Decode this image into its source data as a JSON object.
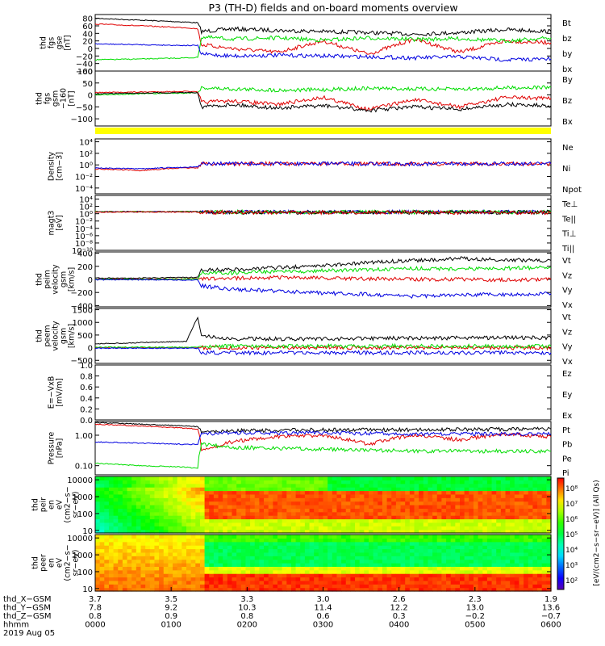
{
  "title": "P3 (TH-D) fields and on-board moments overview",
  "colors": {
    "black": "#000000",
    "red": "#e00000",
    "green": "#00dd00",
    "blue": "#0000e0",
    "yellow": "#ffff00"
  },
  "chart_data": [
    {
      "type": "line",
      "id": "fgs-dsl",
      "ylabel": [
        "thd",
        "fgs",
        "gse",
        "[nT]"
      ],
      "ylim": [
        -60,
        90
      ],
      "yticks": [
        "80",
        "60",
        "40",
        "20",
        "0",
        "−20",
        "−40",
        "−60"
      ],
      "ytick_values": [
        80,
        60,
        40,
        20,
        0,
        -20,
        -40,
        -60
      ],
      "legend": [
        {
          "label": "Bt",
          "color": "black"
        },
        {
          "label": "bz",
          "color": "red"
        },
        {
          "label": "by",
          "color": "green"
        },
        {
          "label": "bx",
          "color": "blue"
        }
      ],
      "series": [
        {
          "name": "Bt",
          "color": "black",
          "x": [
            0,
            60,
            120,
            135,
            140,
            180,
            240,
            300,
            360,
            420,
            480,
            540,
            600
          ],
          "y": [
            80,
            75,
            70,
            68,
            45,
            52,
            48,
            45,
            42,
            38,
            42,
            50,
            45
          ]
        },
        {
          "name": "bz",
          "color": "red",
          "x": [
            0,
            60,
            120,
            135,
            140,
            180,
            240,
            300,
            360,
            420,
            480,
            540,
            600
          ],
          "y": [
            65,
            60,
            55,
            52,
            10,
            0,
            -10,
            20,
            -15,
            25,
            -10,
            20,
            15
          ]
        },
        {
          "name": "by",
          "color": "green",
          "x": [
            0,
            60,
            120,
            135,
            140,
            180,
            240,
            300,
            360,
            420,
            480,
            540,
            600
          ],
          "y": [
            -30,
            -28,
            -25,
            -24,
            30,
            25,
            28,
            22,
            28,
            24,
            26,
            20,
            28
          ]
        },
        {
          "name": "bx",
          "color": "blue",
          "x": [
            0,
            60,
            120,
            135,
            140,
            180,
            240,
            300,
            360,
            420,
            480,
            540,
            600
          ],
          "y": [
            12,
            10,
            8,
            8,
            -15,
            -20,
            -18,
            -20,
            -22,
            -25,
            -22,
            -30,
            -28
          ]
        }
      ]
    },
    {
      "type": "line",
      "id": "fgs-gsm",
      "ylabel": [
        "thd",
        "fgs",
        "gsm",
        "−160",
        "[nT]"
      ],
      "ylim": [
        -130,
        100
      ],
      "yticks": [
        "100",
        "50",
        "0",
        "−50",
        "−100"
      ],
      "ytick_values": [
        100,
        50,
        0,
        -50,
        -100
      ],
      "legend": [
        {
          "label": "By",
          "color": "green"
        },
        {
          "label": "Bz",
          "color": "red"
        },
        {
          "label": "Bx",
          "color": "black"
        }
      ],
      "series": [
        {
          "name": "By",
          "color": "green",
          "x": [
            0,
            60,
            120,
            135,
            140,
            180,
            240,
            300,
            360,
            420,
            480,
            540,
            600
          ],
          "y": [
            0,
            5,
            8,
            10,
            30,
            25,
            20,
            22,
            28,
            25,
            24,
            30,
            32
          ]
        },
        {
          "name": "Bz",
          "color": "red",
          "x": [
            0,
            60,
            120,
            135,
            140,
            180,
            240,
            300,
            360,
            420,
            480,
            540,
            600
          ],
          "y": [
            10,
            12,
            15,
            12,
            -30,
            -25,
            -40,
            -10,
            -60,
            -20,
            -50,
            -10,
            -15
          ]
        },
        {
          "name": "Bx",
          "color": "black",
          "x": [
            0,
            60,
            120,
            135,
            140,
            180,
            240,
            300,
            360,
            420,
            480,
            540,
            600
          ],
          "y": [
            5,
            8,
            10,
            10,
            -50,
            -40,
            -55,
            -45,
            -65,
            -50,
            -60,
            -40,
            -45
          ]
        }
      ]
    },
    {
      "type": "line",
      "id": "density",
      "log": true,
      "ylabel": [
        "Density",
        "[cm−3]"
      ],
      "ylim_log": [
        -5,
        4.5
      ],
      "yticks": [
        "10⁴",
        "10²",
        "10⁰",
        "10⁻²",
        "10⁻⁴"
      ],
      "ytick_values": [
        4,
        2,
        0,
        -2,
        -4
      ],
      "legend": [
        {
          "label": "Ne",
          "color": "red"
        },
        {
          "label": "Ni",
          "color": "black"
        },
        {
          "label": "Npot",
          "color": "blue"
        }
      ],
      "series": [
        {
          "name": "Ne",
          "color": "red",
          "x": [
            0,
            60,
            120,
            135,
            140,
            180,
            300,
            420,
            600
          ],
          "y": [
            0.2,
            0.1,
            0.3,
            0.3,
            1.5,
            1.6,
            1.6,
            1.5,
            1.5
          ]
        },
        {
          "name": "Npot",
          "color": "blue",
          "x": [
            0,
            60,
            120,
            135,
            140,
            180,
            300,
            420,
            600
          ],
          "y": [
            0.3,
            0.2,
            0.4,
            0.5,
            1.5,
            1.6,
            1.6,
            1.5,
            1.6
          ]
        }
      ]
    },
    {
      "type": "line",
      "id": "temperature",
      "log": true,
      "ylabel": [
        "magt3",
        "[eV]"
      ],
      "ylim_log": [
        -10,
        5
      ],
      "yticks": [
        "10⁴",
        "10²",
        "10⁰",
        "10⁻²",
        "10⁻⁴",
        "10⁻⁶",
        "10⁻⁸",
        "10⁻¹⁰"
      ],
      "ytick_values": [
        4,
        2,
        0,
        -2,
        -4,
        -6,
        -8,
        -10
      ],
      "legend": [
        {
          "label": "Te⊥",
          "color": "red"
        },
        {
          "label": "Te||",
          "color": "black"
        },
        {
          "label": "Ti⊥",
          "color": "blue"
        },
        {
          "label": "Ti||",
          "color": "green"
        }
      ],
      "series": [
        {
          "name": "Ti⊥",
          "color": "blue",
          "x": [
            0,
            135,
            140,
            600
          ],
          "y": [
            3.8,
            3.8,
            3.0,
            2.9
          ]
        },
        {
          "name": "Ti||",
          "color": "green",
          "x": [
            0,
            135,
            140,
            600
          ],
          "y": [
            3.6,
            3.6,
            2.8,
            2.7
          ]
        },
        {
          "name": "Te||",
          "color": "black",
          "x": [
            0,
            135,
            140,
            600
          ],
          "y": [
            3.3,
            3.3,
            2.5,
            2.4
          ]
        },
        {
          "name": "Te⊥",
          "color": "red",
          "x": [
            0,
            135,
            140,
            600
          ],
          "y": [
            3.0,
            3.0,
            2.2,
            2.0
          ]
        }
      ]
    },
    {
      "type": "line",
      "id": "peim-velocity",
      "ylabel": [
        "thd",
        "peim",
        "velocity",
        "gsm",
        "[km/s]"
      ],
      "ylim": [
        -420,
        420
      ],
      "yticks": [
        "400",
        "200",
        "0",
        "−200",
        "−400"
      ],
      "ytick_values": [
        400,
        200,
        0,
        -200,
        -400
      ],
      "legend": [
        {
          "label": "Vt",
          "color": "black"
        },
        {
          "label": "Vz",
          "color": "red"
        },
        {
          "label": "Vy",
          "color": "green"
        },
        {
          "label": "Vx",
          "color": "blue"
        }
      ],
      "series": [
        {
          "name": "Vt",
          "color": "black",
          "x": [
            0,
            60,
            120,
            135,
            140,
            180,
            240,
            300,
            360,
            420,
            480,
            540,
            600
          ],
          "y": [
            20,
            20,
            30,
            30,
            140,
            150,
            180,
            210,
            260,
            290,
            320,
            300,
            290
          ]
        },
        {
          "name": "Vz",
          "color": "red",
          "x": [
            0,
            60,
            120,
            135,
            140,
            180,
            240,
            300,
            360,
            420,
            480,
            540,
            600
          ],
          "y": [
            5,
            5,
            10,
            10,
            10,
            20,
            30,
            20,
            10,
            0,
            0,
            -10,
            0
          ]
        },
        {
          "name": "Vy",
          "color": "green",
          "x": [
            0,
            60,
            120,
            135,
            140,
            180,
            240,
            300,
            360,
            420,
            480,
            540,
            600
          ],
          "y": [
            0,
            0,
            5,
            5,
            100,
            100,
            120,
            130,
            150,
            170,
            160,
            170,
            180
          ]
        },
        {
          "name": "Vx",
          "color": "blue",
          "x": [
            0,
            60,
            120,
            135,
            140,
            180,
            240,
            300,
            360,
            420,
            480,
            540,
            600
          ],
          "y": [
            -5,
            -5,
            -10,
            -10,
            -100,
            -150,
            -180,
            -210,
            -230,
            -260,
            -240,
            -230,
            -220
          ]
        }
      ]
    },
    {
      "type": "line",
      "id": "peem-velocity",
      "ylabel": [
        "thd",
        "peem",
        "velocity",
        "gsm",
        "[km/s]"
      ],
      "ylim": [
        -620,
        1550
      ],
      "yticks": [
        "1500",
        "1000",
        "500",
        "0",
        "−500"
      ],
      "ytick_values": [
        1500,
        1000,
        500,
        0,
        -500
      ],
      "legend": [
        {
          "label": "Vt",
          "color": "black"
        },
        {
          "label": "Vz",
          "color": "red"
        },
        {
          "label": "Vy",
          "color": "green"
        },
        {
          "label": "Vx",
          "color": "blue"
        }
      ],
      "series": [
        {
          "name": "Vt",
          "color": "black",
          "x": [
            0,
            60,
            120,
            130,
            135,
            140,
            180,
            300,
            420,
            600
          ],
          "y": [
            150,
            200,
            250,
            900,
            1200,
            450,
            350,
            350,
            380,
            400
          ]
        },
        {
          "name": "Vz",
          "color": "red",
          "x": [
            0,
            600
          ],
          "y": [
            0,
            0
          ]
        },
        {
          "name": "Vy",
          "color": "green",
          "x": [
            0,
            135,
            140,
            600
          ],
          "y": [
            20,
            20,
            60,
            60
          ]
        },
        {
          "name": "Vx",
          "color": "blue",
          "x": [
            0,
            135,
            140,
            600
          ],
          "y": [
            -20,
            -20,
            -200,
            -200
          ]
        }
      ]
    },
    {
      "type": "line",
      "id": "efield",
      "ylabel": [
        "E=−VxB",
        "[mV/m]"
      ],
      "ylim": [
        0,
        1
      ],
      "yticks": [
        "1.0",
        "0.8",
        "0.6",
        "0.4",
        "0.2",
        "0.0"
      ],
      "ytick_values": [
        1.0,
        0.8,
        0.6,
        0.4,
        0.2,
        0.0
      ],
      "legend": [
        {
          "label": "Ez",
          "color": "red"
        },
        {
          "label": "Ey",
          "color": "green"
        },
        {
          "label": "Ex",
          "color": "blue"
        }
      ],
      "series": []
    },
    {
      "type": "line",
      "id": "pressure",
      "log": true,
      "ylabel": [
        "Pressure",
        "[nPa]"
      ],
      "ylim_log": [
        -1.3,
        0.45
      ],
      "yticks": [
        "1.00",
        "0.10"
      ],
      "ytick_values": [
        0,
        -1
      ],
      "legend": [
        {
          "label": "Pt",
          "color": "black"
        },
        {
          "label": "Pb",
          "color": "red"
        },
        {
          "label": "Pe",
          "color": "green"
        },
        {
          "label": "Pi",
          "color": "blue"
        }
      ],
      "series": [
        {
          "name": "Pt",
          "color": "black",
          "x": [
            0,
            60,
            120,
            135,
            140,
            180,
            300,
            420,
            600
          ],
          "y": [
            2.6,
            2.3,
            2.0,
            1.9,
            1.2,
            1.4,
            1.5,
            1.5,
            1.6
          ]
        },
        {
          "name": "Pb",
          "color": "red",
          "x": [
            0,
            60,
            120,
            135,
            140,
            180,
            240,
            300,
            360,
            420,
            480,
            540,
            600
          ],
          "y": [
            2.3,
            2.0,
            1.7,
            1.6,
            0.3,
            0.6,
            0.9,
            1.0,
            0.5,
            1.0,
            0.7,
            1.1,
            0.9
          ]
        },
        {
          "name": "Pe",
          "color": "green",
          "x": [
            0,
            60,
            120,
            135,
            140,
            180,
            300,
            420,
            600
          ],
          "y": [
            0.12,
            0.1,
            0.09,
            0.08,
            0.5,
            0.4,
            0.35,
            0.3,
            0.3
          ]
        },
        {
          "name": "Pi",
          "color": "blue",
          "x": [
            0,
            60,
            120,
            135,
            140,
            180,
            300,
            420,
            600
          ],
          "y": [
            0.6,
            0.55,
            0.5,
            0.5,
            1.1,
            1.2,
            1.2,
            1.1,
            1.1
          ]
        }
      ]
    },
    {
      "type": "heatmap",
      "id": "peir-spec",
      "ylabel": [
        "thd",
        "peir",
        "en",
        "eV",
        "(cm2−s−",
        "sr−eV)"
      ],
      "ylim_log": [
        0.85,
        4.2
      ],
      "yticks": [
        "10000",
        "1000",
        "100",
        "10"
      ],
      "ytick_values": [
        4,
        3,
        2,
        1
      ]
    },
    {
      "type": "heatmap",
      "id": "peer-spec",
      "ylabel": [
        "thd",
        "peer",
        "en",
        "eV",
        "(cm2−s−",
        "sr−eV)"
      ],
      "ylim_log": [
        0.85,
        4.2
      ],
      "yticks": [
        "10000",
        "1000",
        "100",
        "10"
      ],
      "ytick_values": [
        4,
        3,
        2,
        1
      ]
    }
  ],
  "colorbar": {
    "ticks": [
      "10⁸",
      "10⁷",
      "10⁶",
      "10⁵",
      "10⁴",
      "10³",
      "10²"
    ],
    "label": "[eV/(cm2−s−sr−eV)] (All Qs)"
  },
  "xaxis": {
    "range": [
      0,
      600
    ],
    "tick_values": [
      0,
      100,
      200,
      300,
      400,
      500,
      600
    ],
    "rows": [
      {
        "label": "thd_X−GSM",
        "values": [
          "3.7",
          "3.5",
          "3.3",
          "3.0",
          "2.6",
          "2.3",
          "1.9"
        ]
      },
      {
        "label": "thd_Y−GSM",
        "values": [
          "7.8",
          "9.2",
          "10.3",
          "11.4",
          "12.2",
          "13.0",
          "13.6"
        ]
      },
      {
        "label": "thd_Z−GSM",
        "values": [
          "0.8",
          "0.9",
          "0.8",
          "0.6",
          "0.3",
          "−0.2",
          "−0.7"
        ]
      },
      {
        "label": "hhmm",
        "values": [
          "0000",
          "0100",
          "0200",
          "0300",
          "0400",
          "0500",
          "0600"
        ]
      }
    ],
    "date": "2019 Aug 05"
  }
}
